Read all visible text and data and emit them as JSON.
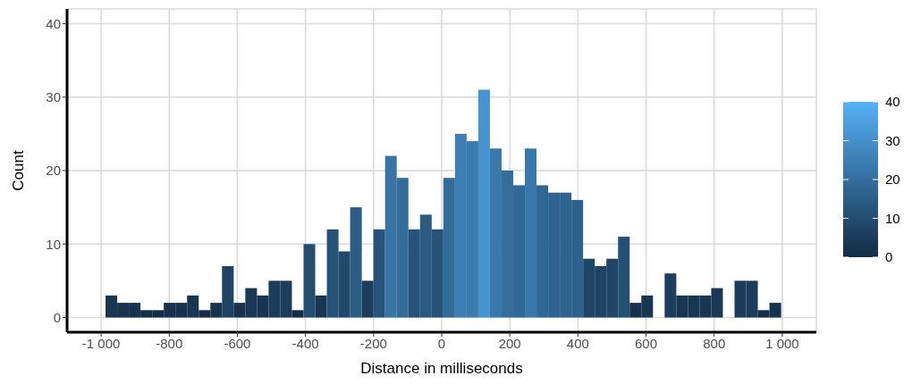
{
  "chart_data": {
    "type": "histogram",
    "xlabel": "Distance in milliseconds",
    "ylabel": "Count",
    "bins": [
      -987,
      -952.8,
      -918.6,
      -884.4,
      -850.2,
      -816,
      -781.8,
      -747.6,
      -713.4,
      -679.2,
      -645,
      -610.8,
      -576.6,
      -542.4,
      -508.2,
      -474,
      -439.8,
      -405.6,
      -371.4,
      -337.2,
      -303,
      -268.8,
      -234.6,
      -200.4,
      -166.2,
      -132,
      -97.8,
      -63.6,
      -29.4,
      4.8,
      39,
      73.2,
      107.4,
      141.6,
      175.8,
      210,
      244.2,
      278.4,
      312.6,
      346.8,
      381,
      415.2,
      449.4,
      483.6,
      517.8,
      552,
      586.2,
      620.4,
      654.6,
      688.8,
      723,
      757.2,
      791.4,
      825.6,
      859.8,
      894,
      928.2,
      962.4,
      996.6
    ],
    "values": [
      3,
      2,
      2,
      1,
      1,
      2,
      2,
      3,
      1,
      2,
      7,
      2,
      4,
      3,
      5,
      5,
      1,
      10,
      3,
      12,
      9,
      15,
      5,
      12,
      22,
      19,
      12,
      14,
      12,
      19,
      25,
      24,
      31,
      23,
      20,
      18,
      23,
      18,
      17,
      17,
      16,
      8,
      7,
      8,
      11,
      2,
      3,
      0,
      6,
      3,
      3,
      3,
      4,
      0,
      5,
      5,
      1,
      2
    ],
    "colors": [
      "#183551",
      "#16324c",
      "#16324c",
      "#152e48",
      "#152e48",
      "#16324c",
      "#16324c",
      "#183551",
      "#152e48",
      "#16324c",
      "#1f4363",
      "#16324c",
      "#1a3855",
      "#183551",
      "#1b3c5a",
      "#1b3c5a",
      "#152e48",
      "#244d70",
      "#183551",
      "#275379",
      "#22496c",
      "#2c5d87",
      "#1b3c5a",
      "#275379",
      "#3875a6",
      "#336b99",
      "#275379",
      "#2b5a82",
      "#275379",
      "#336b99",
      "#3d7fb4",
      "#3b7baf",
      "#4793cf",
      "#3a78ab",
      "#356e9d",
      "#316794",
      "#3a78ab",
      "#316794",
      "#306490",
      "#306490",
      "#2e618b",
      "#204667",
      "#1f4363",
      "#204667",
      "#255075",
      "#16324c",
      "#183551",
      "#132b43",
      "#1d3f5e",
      "#183551",
      "#183551",
      "#183551",
      "#1a3855",
      "#132b43",
      "#1b3c5a",
      "#1b3c5a",
      "#152e48",
      "#16324c"
    ],
    "xlim": [
      -1100,
      1100
    ],
    "xticks": [
      {
        "value": -1000,
        "label": "-1 000"
      },
      -800,
      -600,
      -400,
      -200,
      0,
      200,
      400,
      600,
      800,
      {
        "value": 1000,
        "label": "1 000"
      }
    ],
    "ylim": [
      -2,
      42
    ],
    "yticks": [
      0,
      10,
      20,
      30,
      40
    ],
    "clim": [
      0,
      40
    ],
    "cticks": [
      0,
      10,
      20,
      30,
      40
    ],
    "grid": true
  }
}
